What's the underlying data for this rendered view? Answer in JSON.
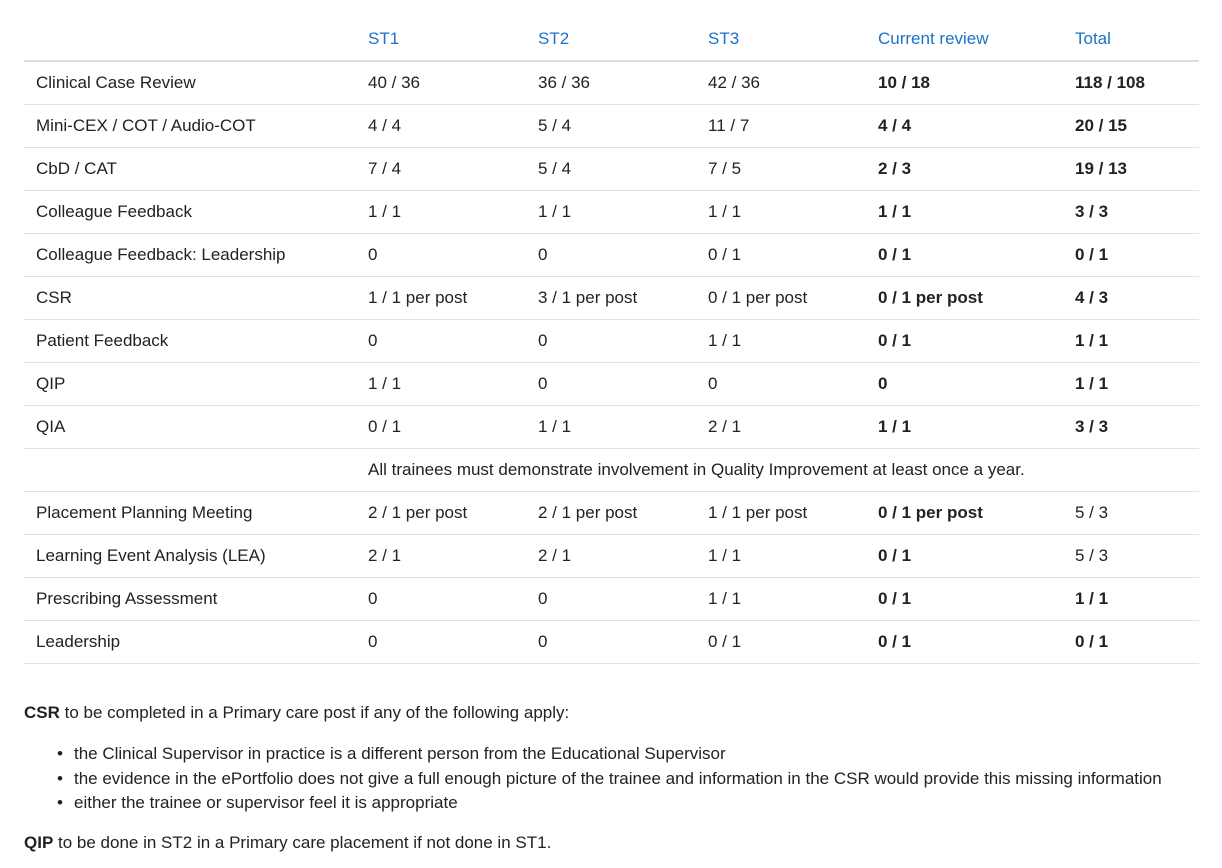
{
  "table": {
    "headers": [
      "",
      "ST1",
      "ST2",
      "ST3",
      "Current review",
      "Total"
    ],
    "header_color": "#1a73c8",
    "rows": [
      {
        "label": "Clinical Case Review",
        "st1": "40 / 36",
        "st2": "36 / 36",
        "st3": "42 / 36",
        "current": "10 / 18",
        "total": "118 / 108"
      },
      {
        "label": "Mini-CEX / COT / Audio-COT",
        "st1": "4 / 4",
        "st2": "5 / 4",
        "st3": "11 / 7",
        "current": "4 / 4",
        "total": "20 / 15"
      },
      {
        "label": "CbD / CAT",
        "st1": "7 / 4",
        "st2": "5 / 4",
        "st3": "7 / 5",
        "current": "2 / 3",
        "total": "19 / 13"
      },
      {
        "label": "Colleague Feedback",
        "st1": "1 / 1",
        "st2": "1 / 1",
        "st3": "1 / 1",
        "current": "1 / 1",
        "total": "3 / 3"
      },
      {
        "label": "Colleague Feedback: Leadership",
        "st1": "0",
        "st2": "0",
        "st3": "0 / 1",
        "current": "0 / 1",
        "total": "0 / 1"
      },
      {
        "label": "CSR",
        "st1": "1 / 1 per post",
        "st2": "3 / 1 per post",
        "st3": "0 / 1 per post",
        "current": "0 / 1 per post",
        "total": "4 / 3"
      },
      {
        "label": "Patient Feedback",
        "st1": "0",
        "st2": "0",
        "st3": "1 / 1",
        "current": "0 / 1",
        "total": "1 / 1"
      },
      {
        "label": "QIP",
        "st1": "1 / 1",
        "st2": "0",
        "st3": "0",
        "current": "0",
        "total": "1 / 1"
      },
      {
        "label": "QIA",
        "st1": "0 / 1",
        "st2": "1 / 1",
        "st3": "2 / 1",
        "current": "1 / 1",
        "total": "3 / 3"
      }
    ],
    "note_row": "All trainees must demonstrate involvement in Quality Improvement at least once a year.",
    "rows2": [
      {
        "label": "Placement Planning Meeting",
        "st1": "2 / 1 per post",
        "st2": "2 / 1 per post",
        "st3": "1 / 1 per post",
        "current": "0 / 1 per post",
        "total": "5 / 3"
      },
      {
        "label": "Learning Event Analysis (LEA)",
        "st1": "2 / 1",
        "st2": "2 / 1",
        "st3": "1 / 1",
        "current": "0 / 1",
        "total": "5 / 3"
      },
      {
        "label": "Prescribing Assessment",
        "st1": "0",
        "st2": "0",
        "st3": "1 / 1",
        "current": "0 / 1",
        "total": "1 / 1"
      },
      {
        "label": "Leadership",
        "st1": "0",
        "st2": "0",
        "st3": "0 / 1",
        "current": "0 / 1",
        "total": "0 / 1"
      }
    ]
  },
  "notes": {
    "csr_term": "CSR",
    "csr_text": " to be completed in a Primary care post if any of the following apply:",
    "bullets": [
      "the Clinical Supervisor in practice is a different person from the Educational Supervisor",
      "the evidence in the ePortfolio does not give a full enough picture of the trainee and information in the CSR would provide this missing information",
      "either the trainee or supervisor feel it is appropriate"
    ],
    "bullet_glyph": "•",
    "qip_term": "QIP",
    "qip_text": " to be done in ST2 in a Primary care placement if not done in ST1."
  }
}
